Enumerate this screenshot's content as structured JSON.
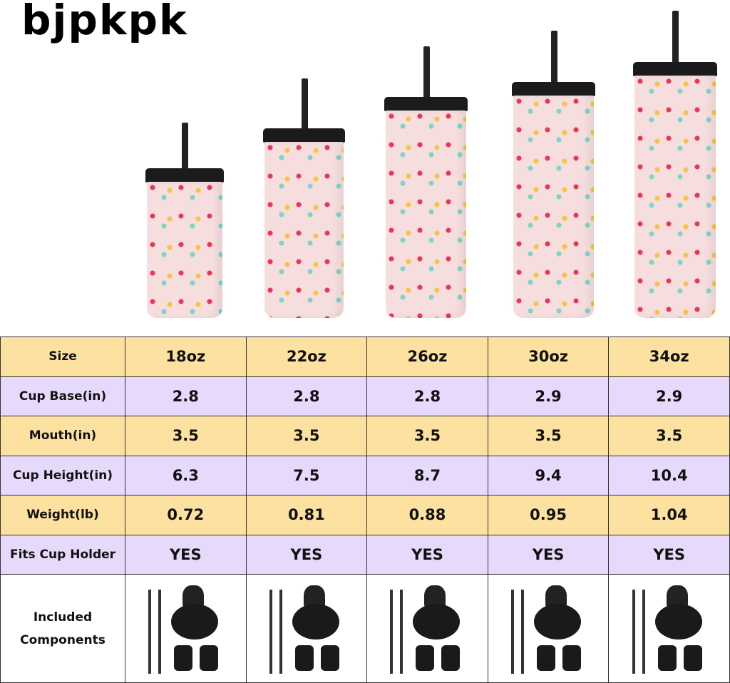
{
  "brand": {
    "logo_text": "bjpkpk"
  },
  "table": {
    "headers": [
      "Size",
      "18oz",
      "22oz",
      "26oz",
      "30oz",
      "34oz"
    ],
    "rows": [
      {
        "label": "Cup Base(in)",
        "values": [
          "2.8",
          "2.8",
          "2.8",
          "2.9",
          "2.9"
        ]
      },
      {
        "label": "Mouth(in)",
        "values": [
          "3.5",
          "3.5",
          "3.5",
          "3.5",
          "3.5"
        ]
      },
      {
        "label": "Cup Height(in)",
        "values": [
          "6.3",
          "7.5",
          "8.7",
          "9.4",
          "10.4"
        ]
      },
      {
        "label": "Weight(lb)",
        "values": [
          "0.72",
          "0.81",
          "0.88",
          "0.95",
          "1.04"
        ]
      },
      {
        "label": "Fits Cup Holder",
        "values": [
          "YES",
          "YES",
          "YES",
          "YES",
          "YES"
        ]
      }
    ],
    "components_label": "Included Components"
  },
  "colors": {
    "orange_row": "#fde1a0",
    "purple_row": "#e6d9fb",
    "cup_pink": "#f7dede",
    "lid": "#1b1b1b"
  }
}
